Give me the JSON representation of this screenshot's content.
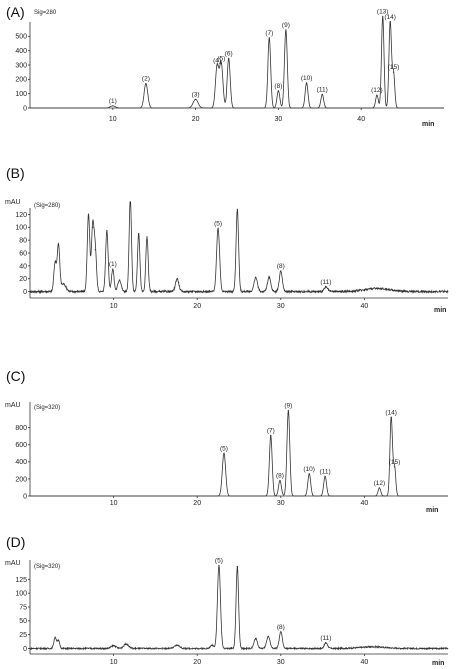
{
  "chart_data": [
    {
      "panel": "(A)",
      "type": "line",
      "signal": "Sig=280",
      "ylabel": "",
      "xlabel": "min",
      "xlim": [
        0,
        50
      ],
      "ylim": [
        0,
        600
      ],
      "xticks": [
        10,
        20,
        30,
        40
      ],
      "yticks": [
        0,
        100,
        200,
        300,
        400,
        500
      ],
      "baseline_noise": 0,
      "peaks": [
        {
          "rt": 10.0,
          "h": 15,
          "w": 0.3,
          "label": "(1)"
        },
        {
          "rt": 14.0,
          "h": 170,
          "w": 0.22,
          "label": "(2)"
        },
        {
          "rt": 20.0,
          "h": 60,
          "w": 0.3,
          "label": "(3)"
        },
        {
          "rt": 22.6,
          "h": 295,
          "w": 0.2,
          "label": "(4)"
        },
        {
          "rt": 23.1,
          "h": 310,
          "w": 0.2,
          "label": "(5)"
        },
        {
          "rt": 24.0,
          "h": 345,
          "w": 0.18,
          "label": "(6)"
        },
        {
          "rt": 28.9,
          "h": 490,
          "w": 0.17,
          "label": "(7)"
        },
        {
          "rt": 30.0,
          "h": 120,
          "w": 0.17,
          "label": "(8)"
        },
        {
          "rt": 30.9,
          "h": 545,
          "w": 0.17,
          "label": "(9)"
        },
        {
          "rt": 33.4,
          "h": 175,
          "w": 0.17,
          "label": "(10)"
        },
        {
          "rt": 35.3,
          "h": 95,
          "w": 0.17,
          "label": "(11)"
        },
        {
          "rt": 41.9,
          "h": 90,
          "w": 0.16,
          "label": "(12)"
        },
        {
          "rt": 42.6,
          "h": 640,
          "w": 0.15,
          "label": "(13)"
        },
        {
          "rt": 43.5,
          "h": 600,
          "w": 0.15,
          "label": "(14)"
        },
        {
          "rt": 43.9,
          "h": 250,
          "w": 0.15,
          "label": "(15)"
        }
      ]
    },
    {
      "panel": "(B)",
      "type": "line",
      "signal": "(Sig=280)",
      "ylabel": "mAU",
      "xlabel": "min",
      "xlim": [
        0,
        50
      ],
      "ylim": [
        -10,
        130
      ],
      "xticks": [
        10,
        20,
        30,
        40
      ],
      "yticks": [
        0,
        20,
        40,
        60,
        80,
        100,
        120
      ],
      "baseline_noise": 1.5,
      "peaks": [
        {
          "rt": 3.0,
          "h": 45,
          "w": 0.15,
          "label": ""
        },
        {
          "rt": 3.4,
          "h": 72,
          "w": 0.15,
          "label": ""
        },
        {
          "rt": 4.0,
          "h": 12,
          "w": 0.3,
          "label": ""
        },
        {
          "rt": 7.0,
          "h": 120,
          "w": 0.15,
          "label": ""
        },
        {
          "rt": 7.5,
          "h": 100,
          "w": 0.15,
          "label": ""
        },
        {
          "rt": 7.8,
          "h": 65,
          "w": 0.15,
          "label": ""
        },
        {
          "rt": 9.2,
          "h": 95,
          "w": 0.15,
          "label": ""
        },
        {
          "rt": 9.9,
          "h": 35,
          "w": 0.15,
          "label": "(1)"
        },
        {
          "rt": 10.7,
          "h": 18,
          "w": 0.2,
          "label": ""
        },
        {
          "rt": 12.0,
          "h": 145,
          "w": 0.14,
          "label": ""
        },
        {
          "rt": 13.0,
          "h": 90,
          "w": 0.14,
          "label": ""
        },
        {
          "rt": 14.0,
          "h": 85,
          "w": 0.14,
          "label": ""
        },
        {
          "rt": 17.6,
          "h": 20,
          "w": 0.2,
          "label": ""
        },
        {
          "rt": 22.5,
          "h": 98,
          "w": 0.18,
          "label": "(5)"
        },
        {
          "rt": 24.8,
          "h": 128,
          "w": 0.15,
          "label": ""
        },
        {
          "rt": 27.0,
          "h": 22,
          "w": 0.2,
          "label": ""
        },
        {
          "rt": 28.6,
          "h": 22,
          "w": 0.2,
          "label": ""
        },
        {
          "rt": 30.0,
          "h": 32,
          "w": 0.18,
          "label": "(8)"
        },
        {
          "rt": 35.4,
          "h": 7,
          "w": 0.2,
          "label": "(11)"
        },
        {
          "rt": 41.5,
          "h": 5,
          "w": 1.5,
          "label": ""
        }
      ]
    },
    {
      "panel": "(C)",
      "type": "line",
      "signal": "(Sig=320)",
      "ylabel": "mAU",
      "xlabel": "min",
      "xlim": [
        0,
        50
      ],
      "ylim": [
        0,
        1100
      ],
      "xticks": [
        10,
        20,
        30,
        40
      ],
      "yticks": [
        0,
        200,
        400,
        600,
        800
      ],
      "baseline_noise": 0,
      "peaks": [
        {
          "rt": 23.2,
          "h": 500,
          "w": 0.2,
          "label": "(5)"
        },
        {
          "rt": 28.8,
          "h": 710,
          "w": 0.17,
          "label": "(7)"
        },
        {
          "rt": 29.9,
          "h": 180,
          "w": 0.17,
          "label": "(8)"
        },
        {
          "rt": 30.9,
          "h": 1000,
          "w": 0.17,
          "label": "(9)"
        },
        {
          "rt": 33.4,
          "h": 260,
          "w": 0.17,
          "label": "(10)"
        },
        {
          "rt": 35.3,
          "h": 230,
          "w": 0.17,
          "label": "(11)"
        },
        {
          "rt": 41.8,
          "h": 95,
          "w": 0.16,
          "label": "(12)"
        },
        {
          "rt": 43.2,
          "h": 920,
          "w": 0.15,
          "label": "(14)"
        },
        {
          "rt": 43.6,
          "h": 340,
          "w": 0.15,
          "label": "(15)"
        }
      ]
    },
    {
      "panel": "(D)",
      "type": "line",
      "signal": "(Sig=320)",
      "ylabel": "mAU",
      "xlabel": "min",
      "xlim": [
        0,
        50
      ],
      "ylim": [
        -10,
        160
      ],
      "xticks": [
        10,
        20,
        30,
        40
      ],
      "yticks": [
        0,
        25,
        50,
        75,
        100,
        125
      ],
      "baseline_noise": 1.2,
      "peaks": [
        {
          "rt": 3.0,
          "h": 20,
          "w": 0.15,
          "label": ""
        },
        {
          "rt": 3.4,
          "h": 14,
          "w": 0.15,
          "label": ""
        },
        {
          "rt": 10.0,
          "h": 5,
          "w": 0.3,
          "label": ""
        },
        {
          "rt": 11.5,
          "h": 8,
          "w": 0.3,
          "label": ""
        },
        {
          "rt": 17.6,
          "h": 6,
          "w": 0.3,
          "label": ""
        },
        {
          "rt": 21.8,
          "h": 6,
          "w": 0.2,
          "label": ""
        },
        {
          "rt": 22.6,
          "h": 150,
          "w": 0.18,
          "label": "(5)"
        },
        {
          "rt": 24.8,
          "h": 148,
          "w": 0.15,
          "label": ""
        },
        {
          "rt": 27.0,
          "h": 18,
          "w": 0.2,
          "label": ""
        },
        {
          "rt": 28.5,
          "h": 22,
          "w": 0.2,
          "label": ""
        },
        {
          "rt": 30.0,
          "h": 30,
          "w": 0.18,
          "label": "(8)"
        },
        {
          "rt": 35.4,
          "h": 10,
          "w": 0.2,
          "label": "(11)"
        },
        {
          "rt": 41.0,
          "h": 3,
          "w": 1.5,
          "label": ""
        }
      ]
    }
  ]
}
